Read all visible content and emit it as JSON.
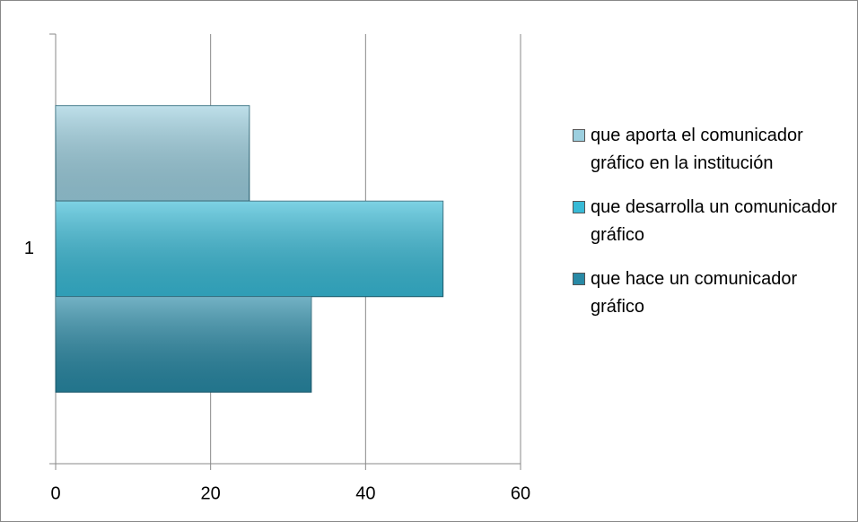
{
  "chart_data": {
    "type": "bar",
    "orientation": "horizontal",
    "categories": [
      "1"
    ],
    "series": [
      {
        "name": "que aporta el comunicador gráfico en la institución",
        "color": "#9ccfdf",
        "values": [
          25
        ]
      },
      {
        "name": "que desarrolla un comunicador gráfico",
        "color": "#38bad6",
        "values": [
          50
        ]
      },
      {
        "name": "que hace un comunicador gráfico",
        "color": "#2889a5",
        "values": [
          33
        ]
      }
    ],
    "xlim": [
      0,
      60
    ],
    "xticks": [
      0,
      20,
      40,
      60
    ],
    "grid": true,
    "legend": "right"
  }
}
